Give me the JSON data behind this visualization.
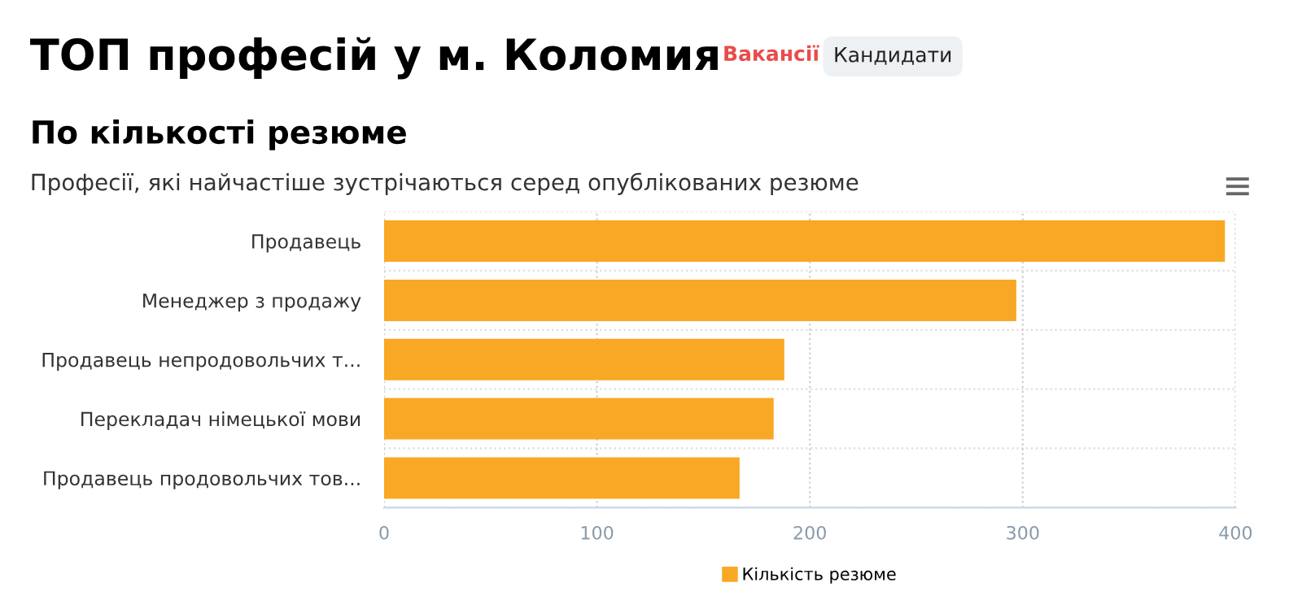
{
  "chart_data": {
    "type": "bar",
    "orientation": "horizontal",
    "title": "ТОП професій у м. Коломия",
    "subtitle": "По кількості резюме",
    "annotations": [
      "Професії, які найчастіше зустрічаються серед опублікованих резюме",
      "Вакансії",
      "Кандидати"
    ],
    "categories": [
      "Продавець",
      "Менеджер з продажу",
      "Продавець непродовольчих т...",
      "Перекладач німецької мови",
      "Продавець продовольчих тов..."
    ],
    "series": [
      {
        "name": "Кількість резюме",
        "color": "#f9a825",
        "values": [
          395,
          297,
          188,
          183,
          167
        ]
      }
    ],
    "xlim": [
      0,
      400
    ],
    "xticks": [
      0,
      100,
      200,
      300,
      400
    ],
    "grid": true,
    "legend": "bottom"
  }
}
